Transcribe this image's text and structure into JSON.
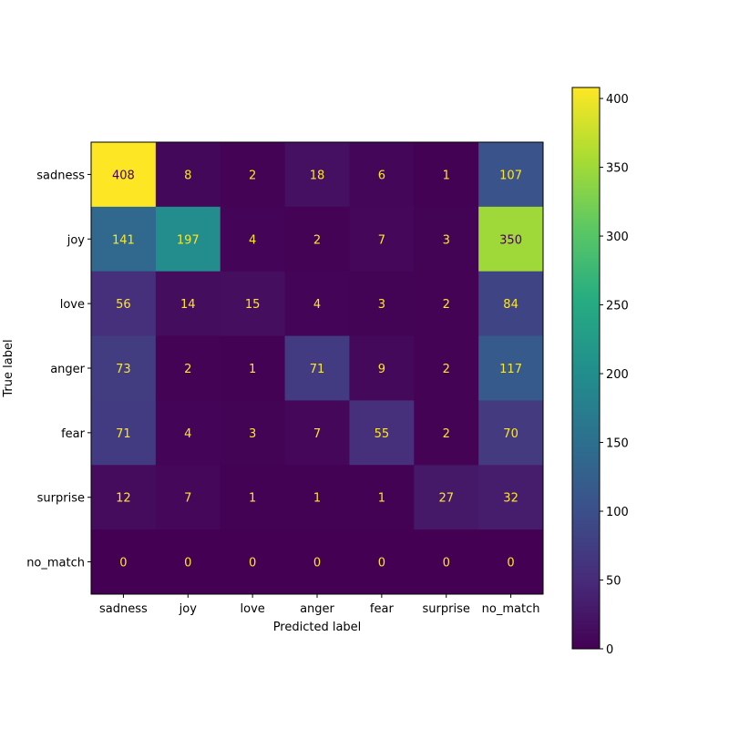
{
  "chart_data": {
    "type": "heatmap",
    "xlabel": "Predicted label",
    "ylabel": "True label",
    "x_categories": [
      "sadness",
      "joy",
      "love",
      "anger",
      "fear",
      "surprise",
      "no_match"
    ],
    "y_categories": [
      "sadness",
      "joy",
      "love",
      "anger",
      "fear",
      "surprise",
      "no_match"
    ],
    "values": [
      [
        408,
        8,
        2,
        18,
        6,
        1,
        107
      ],
      [
        141,
        197,
        4,
        2,
        7,
        3,
        350
      ],
      [
        56,
        14,
        15,
        4,
        3,
        2,
        84
      ],
      [
        73,
        2,
        1,
        71,
        9,
        2,
        117
      ],
      [
        71,
        4,
        3,
        7,
        55,
        2,
        70
      ],
      [
        12,
        7,
        1,
        1,
        1,
        27,
        32
      ],
      [
        0,
        0,
        0,
        0,
        0,
        0,
        0
      ]
    ],
    "colormap": "viridis",
    "color_range": [
      0,
      408
    ],
    "colorbar_ticks": [
      0,
      50,
      100,
      150,
      200,
      250,
      300,
      350,
      400
    ],
    "colorbar_placement": "right",
    "text_colors": {
      "light": "#fde725",
      "dark": "#440154"
    }
  }
}
